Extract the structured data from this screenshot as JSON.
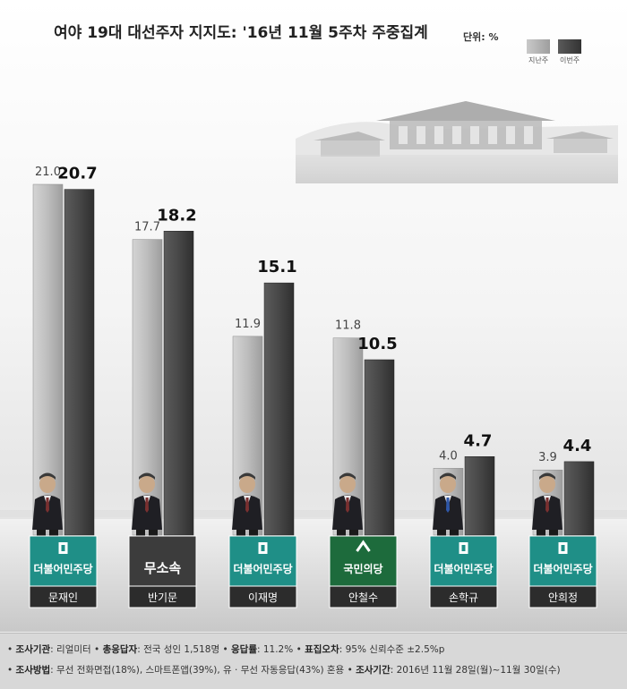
{
  "title": "여야 19대 대선주자 지지도: '16년 11월 5주차 주중집계",
  "unit": "단위: %",
  "chart_data": {
    "type": "bar",
    "title": "여야 19대 대선주자 지지도: '16년 11월 5주차 주중집계",
    "unit": "%",
    "categories": [
      "문재인",
      "반기문",
      "이재명",
      "안철수",
      "손학규",
      "안희정"
    ],
    "parties": [
      "더불어민주당",
      "무소속",
      "더불어민주당",
      "국민의당",
      "더불어민주당",
      "더불어민주당"
    ],
    "series": [
      {
        "name": "지난주",
        "values": [
          21.0,
          17.7,
          11.9,
          11.8,
          4.0,
          3.9
        ],
        "color": "#b5b5b5"
      },
      {
        "name": "이번주",
        "values": [
          20.7,
          18.2,
          15.1,
          10.5,
          4.7,
          4.4
        ],
        "color": "#4a4a4a"
      }
    ],
    "ylim": [
      0,
      21.0
    ],
    "grid": false,
    "legend": "top-right"
  },
  "party_colors": {
    "더불어민주당": "#1f8f87",
    "무소속": "#3c3c3c",
    "국민의당": "#1d6b3c"
  },
  "footer": {
    "line1": [
      {
        "label": "조사기관",
        "value": ": 리얼미터"
      },
      {
        "label": "총응답자",
        "value": ": 전국 성인 1,518명"
      },
      {
        "label": "응답률",
        "value": ": 11.2%"
      },
      {
        "label": "표집오차",
        "value": ": 95% 신뢰수준 ±2.5%p"
      }
    ],
    "line2": [
      {
        "label": "조사방법",
        "value": ": 무선 전화면접(18%), 스마트폰앱(39%), 유 · 무선 자동응답(43%) 혼용"
      },
      {
        "label": "조사기간",
        "value": ": 2016년 11월 28일(월)~11월 30일(수)"
      }
    ]
  }
}
